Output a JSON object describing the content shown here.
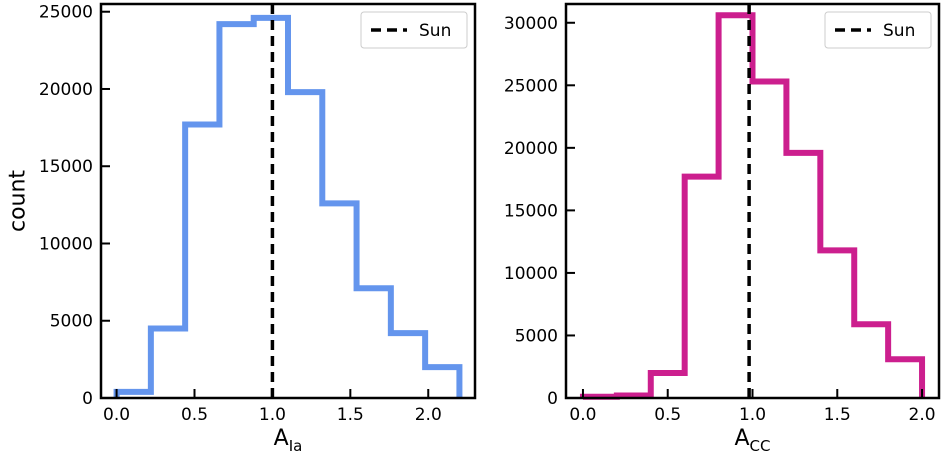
{
  "chart_data": [
    {
      "type": "step",
      "xlabel": "A",
      "xlabel_sub": "Ia",
      "ylabel": "count",
      "xlim": [
        -0.1,
        2.3
      ],
      "ylim": [
        0,
        25500
      ],
      "xticks": [
        "0.0",
        "0.5",
        "1.0",
        "1.5",
        "2.0"
      ],
      "xtick_values": [
        0.0,
        0.5,
        1.0,
        1.5,
        2.0
      ],
      "yticks": [
        "0",
        "5000",
        "10000",
        "15000",
        "20000",
        "25000"
      ],
      "ytick_values": [
        0,
        5000,
        10000,
        15000,
        20000,
        25000
      ],
      "bin_edges": [
        0.0,
        0.22,
        0.44,
        0.66,
        0.88,
        1.1,
        1.32,
        1.54,
        1.76,
        1.98,
        2.2
      ],
      "counts": [
        400,
        4500,
        17700,
        24200,
        24600,
        19800,
        12600,
        7100,
        4200,
        2000
      ],
      "color": "#6495ED",
      "sun_x": 1.0,
      "legend_label": "Sun",
      "legend_position": "upper right"
    },
    {
      "type": "step",
      "xlabel": "A",
      "xlabel_sub": "CC",
      "ylabel": "",
      "xlim": [
        -0.1,
        2.1
      ],
      "ylim": [
        0,
        31500
      ],
      "xticks": [
        "0.0",
        "0.5",
        "1.0",
        "1.5",
        "2.0"
      ],
      "xtick_values": [
        0.0,
        0.5,
        1.0,
        1.5,
        2.0
      ],
      "yticks": [
        "0",
        "5000",
        "10000",
        "15000",
        "20000",
        "25000",
        "30000"
      ],
      "ytick_values": [
        0,
        5000,
        10000,
        15000,
        20000,
        25000,
        30000
      ],
      "bin_edges": [
        0.0,
        0.2,
        0.4,
        0.6,
        0.8,
        1.0,
        1.2,
        1.4,
        1.6,
        1.8,
        2.0
      ],
      "counts": [
        100,
        200,
        2000,
        17700,
        30600,
        25300,
        19600,
        11800,
        5900,
        3100
      ],
      "color": "#CC1F8E",
      "sun_x": 0.98,
      "legend_label": "Sun",
      "legend_position": "upper right"
    }
  ]
}
